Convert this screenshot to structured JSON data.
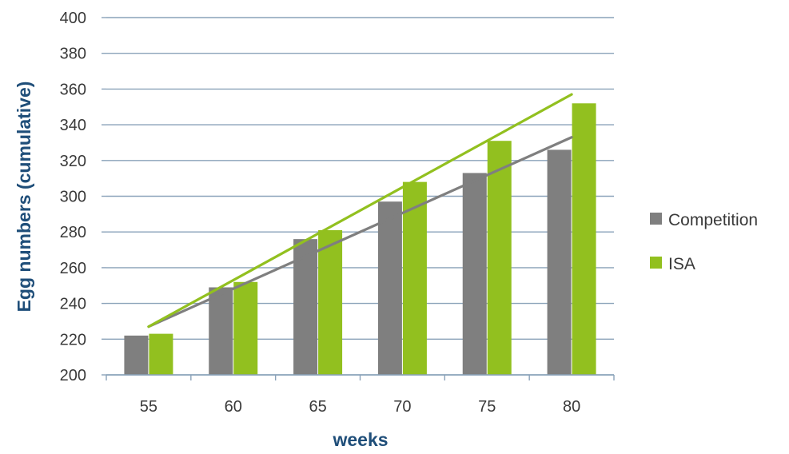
{
  "chart_data": {
    "type": "bar",
    "xlabel": "weeks",
    "ylabel": "Egg numbers (cumulative)",
    "categories": [
      "55",
      "60",
      "65",
      "70",
      "75",
      "80"
    ],
    "series": [
      {
        "name": "Competition",
        "color": "#7f7f7f",
        "values": [
          222,
          249,
          276,
          297,
          313,
          326
        ]
      },
      {
        "name": "ISA",
        "color": "#92c01f",
        "values": [
          223,
          252,
          281,
          308,
          331,
          352
        ]
      }
    ],
    "trendlines": [
      {
        "series": "Competition",
        "color": "#7f7f7f",
        "x_start": "55",
        "x_end": "80",
        "y_start": 227,
        "y_end": 333
      },
      {
        "series": "ISA",
        "color": "#92c01f",
        "x_start": "55",
        "x_end": "80",
        "y_start": 227,
        "y_end": 357
      }
    ],
    "ylim": [
      200,
      400
    ],
    "yticks": [
      200,
      220,
      240,
      260,
      280,
      300,
      320,
      340,
      360,
      380,
      400
    ],
    "grid": true,
    "legend": "right"
  }
}
